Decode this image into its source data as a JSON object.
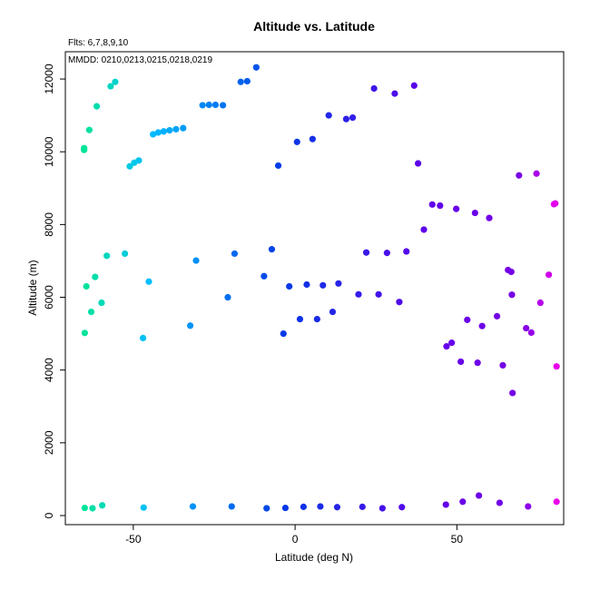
{
  "chart_data": {
    "type": "scatter",
    "title": "Altitude vs. Latitude",
    "subtitle_flts": "Flts: 6,7,8,9,10",
    "subtitle_mmdd": "MMDD: 0210,0213,0215,0218,0219",
    "xlabel": "Latitude (deg N)",
    "ylabel": "Altitude (m)",
    "xlim": [
      -71,
      83
    ],
    "ylim": [
      -250,
      12750
    ],
    "grid": false,
    "xticks": [
      -50,
      0,
      50
    ],
    "yticks": [
      0,
      2000,
      4000,
      6000,
      8000,
      10000,
      12000
    ],
    "xtick_labels": [
      "-50",
      "0",
      "50"
    ],
    "ytick_labels": [
      "0",
      "2000",
      "4000",
      "6000",
      "8000",
      "10000",
      "12000"
    ],
    "color_mode": "hue varies with latitude (green at south, cyan, blue, purple, magenta at north)",
    "points": [
      {
        "x": -65.2,
        "y": 10050
      },
      {
        "x": -65.2,
        "y": 10100
      },
      {
        "x": -63.6,
        "y": 10600
      },
      {
        "x": -61.3,
        "y": 11250
      },
      {
        "x": -57.0,
        "y": 11800
      },
      {
        "x": -55.6,
        "y": 11920
      },
      {
        "x": -51.1,
        "y": 9600
      },
      {
        "x": -49.7,
        "y": 9700
      },
      {
        "x": -48.3,
        "y": 9760
      },
      {
        "x": -43.9,
        "y": 10480
      },
      {
        "x": -42.3,
        "y": 10530
      },
      {
        "x": -40.6,
        "y": 10560
      },
      {
        "x": -38.8,
        "y": 10590
      },
      {
        "x": -36.8,
        "y": 10620
      },
      {
        "x": -34.6,
        "y": 10650
      },
      {
        "x": -28.6,
        "y": 11280
      },
      {
        "x": -26.6,
        "y": 11290
      },
      {
        "x": -24.6,
        "y": 11290
      },
      {
        "x": -22.3,
        "y": 11280
      },
      {
        "x": -16.8,
        "y": 11920
      },
      {
        "x": -14.8,
        "y": 11940
      },
      {
        "x": -12.0,
        "y": 12320
      },
      {
        "x": -5.2,
        "y": 9620
      },
      {
        "x": 0.6,
        "y": 10270
      },
      {
        "x": 5.4,
        "y": 10350
      },
      {
        "x": 10.4,
        "y": 11000
      },
      {
        "x": 15.8,
        "y": 10900
      },
      {
        "x": 17.8,
        "y": 10940
      },
      {
        "x": 24.4,
        "y": 11740
      },
      {
        "x": 30.8,
        "y": 11600
      },
      {
        "x": 36.8,
        "y": 11820
      },
      {
        "x": 38.0,
        "y": 9680
      },
      {
        "x": -65.0,
        "y": 5020
      },
      {
        "x": -64.5,
        "y": 6300
      },
      {
        "x": -63.0,
        "y": 5600
      },
      {
        "x": -61.8,
        "y": 6560
      },
      {
        "x": -59.8,
        "y": 5850
      },
      {
        "x": -58.2,
        "y": 7140
      },
      {
        "x": -52.6,
        "y": 7200
      },
      {
        "x": -47.0,
        "y": 4880
      },
      {
        "x": -45.2,
        "y": 6430
      },
      {
        "x": -32.4,
        "y": 5220
      },
      {
        "x": -30.6,
        "y": 7010
      },
      {
        "x": -20.8,
        "y": 6000
      },
      {
        "x": -18.7,
        "y": 7200
      },
      {
        "x": -9.6,
        "y": 6580
      },
      {
        "x": -7.2,
        "y": 7320
      },
      {
        "x": -3.6,
        "y": 5000
      },
      {
        "x": -1.8,
        "y": 6300
      },
      {
        "x": 1.5,
        "y": 5400
      },
      {
        "x": 3.6,
        "y": 6350
      },
      {
        "x": 6.8,
        "y": 5400
      },
      {
        "x": 8.6,
        "y": 6330
      },
      {
        "x": 11.6,
        "y": 5600
      },
      {
        "x": 13.4,
        "y": 6380
      },
      {
        "x": 19.6,
        "y": 6080
      },
      {
        "x": 22.0,
        "y": 7230
      },
      {
        "x": 25.8,
        "y": 6080
      },
      {
        "x": 28.4,
        "y": 7220
      },
      {
        "x": 32.2,
        "y": 5870
      },
      {
        "x": 34.4,
        "y": 7260
      },
      {
        "x": 39.8,
        "y": 7860
      },
      {
        "x": 42.4,
        "y": 8550
      },
      {
        "x": 44.8,
        "y": 8520
      },
      {
        "x": 46.8,
        "y": 4650
      },
      {
        "x": 48.4,
        "y": 4750
      },
      {
        "x": 49.8,
        "y": 8430
      },
      {
        "x": 51.2,
        "y": 4230
      },
      {
        "x": 53.2,
        "y": 5380
      },
      {
        "x": 55.6,
        "y": 8320
      },
      {
        "x": 56.4,
        "y": 4200
      },
      {
        "x": 57.8,
        "y": 5210
      },
      {
        "x": 60.0,
        "y": 8180
      },
      {
        "x": 62.4,
        "y": 5480
      },
      {
        "x": 64.2,
        "y": 4130
      },
      {
        "x": 65.8,
        "y": 6750
      },
      {
        "x": 66.8,
        "y": 6700
      },
      {
        "x": 67.0,
        "y": 6070
      },
      {
        "x": 67.2,
        "y": 3370
      },
      {
        "x": 69.2,
        "y": 9350
      },
      {
        "x": 71.4,
        "y": 5150
      },
      {
        "x": 73.0,
        "y": 5030
      },
      {
        "x": 74.6,
        "y": 9400
      },
      {
        "x": 75.8,
        "y": 5850
      },
      {
        "x": 78.4,
        "y": 6620
      },
      {
        "x": 80.0,
        "y": 8560
      },
      {
        "x": 80.4,
        "y": 8580
      },
      {
        "x": 80.8,
        "y": 4100
      },
      {
        "x": -65.0,
        "y": 210
      },
      {
        "x": -62.6,
        "y": 200
      },
      {
        "x": -59.6,
        "y": 280
      },
      {
        "x": -46.8,
        "y": 220
      },
      {
        "x": -31.6,
        "y": 250
      },
      {
        "x": -19.6,
        "y": 250
      },
      {
        "x": -8.8,
        "y": 200
      },
      {
        "x": -3.0,
        "y": 210
      },
      {
        "x": 2.6,
        "y": 240
      },
      {
        "x": 7.8,
        "y": 250
      },
      {
        "x": 13.0,
        "y": 230
      },
      {
        "x": 20.8,
        "y": 240
      },
      {
        "x": 27.0,
        "y": 200
      },
      {
        "x": 33.0,
        "y": 230
      },
      {
        "x": 46.6,
        "y": 300
      },
      {
        "x": 51.8,
        "y": 380
      },
      {
        "x": 56.8,
        "y": 550
      },
      {
        "x": 63.2,
        "y": 350
      },
      {
        "x": 72.0,
        "y": 250
      },
      {
        "x": 80.8,
        "y": 380
      }
    ]
  }
}
